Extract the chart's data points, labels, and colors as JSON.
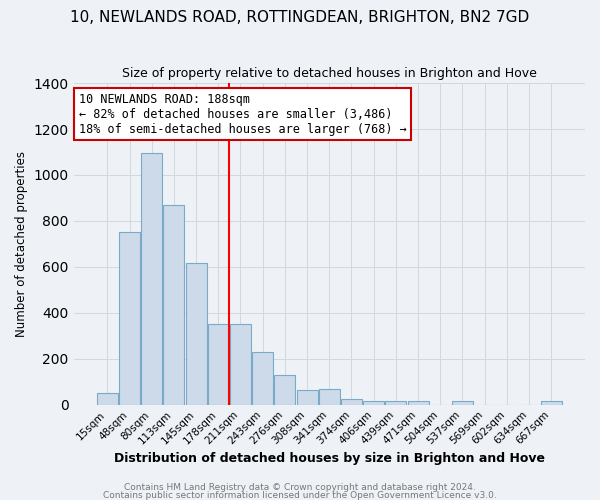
{
  "title": "10, NEWLANDS ROAD, ROTTINGDEAN, BRIGHTON, BN2 7GD",
  "subtitle": "Size of property relative to detached houses in Brighton and Hove",
  "xlabel": "Distribution of detached houses by size in Brighton and Hove",
  "ylabel": "Number of detached properties",
  "categories": [
    "15sqm",
    "48sqm",
    "80sqm",
    "113sqm",
    "145sqm",
    "178sqm",
    "211sqm",
    "243sqm",
    "276sqm",
    "308sqm",
    "341sqm",
    "374sqm",
    "406sqm",
    "439sqm",
    "471sqm",
    "504sqm",
    "537sqm",
    "569sqm",
    "602sqm",
    "634sqm",
    "667sqm"
  ],
  "values": [
    50,
    750,
    1095,
    870,
    615,
    350,
    350,
    228,
    130,
    63,
    68,
    25,
    18,
    18,
    15,
    0,
    18,
    0,
    0,
    0,
    15
  ],
  "bar_color": "#ccdaea",
  "bar_edge_color": "#7aaac8",
  "vline_x": 5.5,
  "vline_color": "red",
  "annotation_title": "10 NEWLANDS ROAD: 188sqm",
  "annotation_line1": "← 82% of detached houses are smaller (3,486)",
  "annotation_line2": "18% of semi-detached houses are larger (768) →",
  "annotation_box_facecolor": "white",
  "annotation_box_edgecolor": "#cc0000",
  "ylim": [
    0,
    1400
  ],
  "yticks": [
    0,
    200,
    400,
    600,
    800,
    1000,
    1200,
    1400
  ],
  "footer1": "Contains HM Land Registry data © Crown copyright and database right 2024.",
  "footer2": "Contains public sector information licensed under the Open Government Licence v3.0.",
  "bg_color": "#eef2f7",
  "grid_color": "#d0d8e0",
  "title_fontsize": 11,
  "subtitle_fontsize": 9,
  "xlabel_fontsize": 9,
  "ylabel_fontsize": 8.5,
  "tick_fontsize": 7.5,
  "annotation_fontsize": 8.5,
  "footer_fontsize": 6.5
}
